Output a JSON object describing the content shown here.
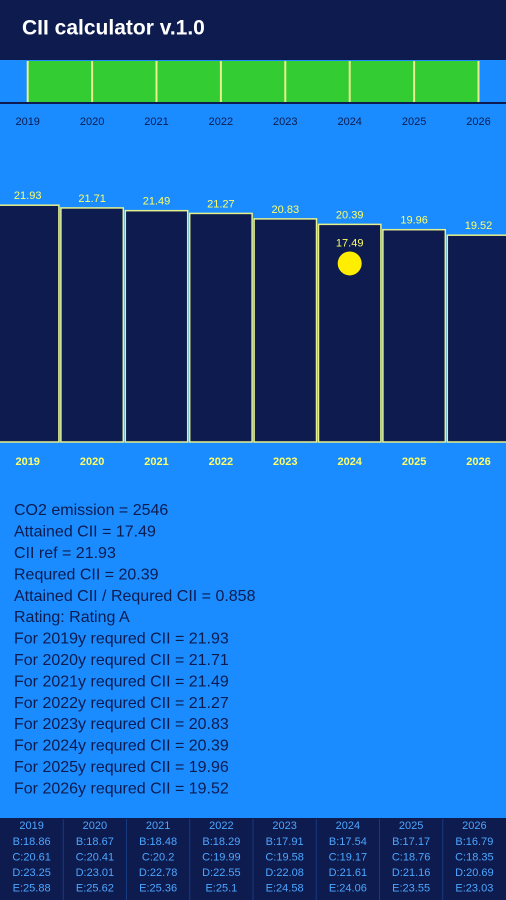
{
  "header": {
    "title": "CII calculator v.1.0"
  },
  "timeline": {
    "years": [
      "2019",
      "2020",
      "2021",
      "2022",
      "2023",
      "2024",
      "2025",
      "2026"
    ]
  },
  "chart_data": {
    "type": "bar",
    "categories": [
      "2019",
      "2020",
      "2021",
      "2022",
      "2023",
      "2024",
      "2025",
      "2026"
    ],
    "values": [
      21.93,
      21.71,
      21.49,
      21.27,
      20.83,
      20.39,
      19.96,
      19.52
    ],
    "color": "#0d1b4f",
    "ylim": [
      2.9,
      25
    ],
    "marker": {
      "category": 5,
      "value": 17.49,
      "color": "#ffee00"
    }
  },
  "info": {
    "lines": [
      "CO2 emission = 2546",
      "Attained CII = 17.49",
      "CII ref = 21.93",
      "Requred CII = 20.39",
      "Attained CII / Requred CII = 0.858",
      "Rating: Rating A",
      "For 2019y requred CII = 21.93",
      "For 2020y requred CII = 21.71",
      "For 2021y requred CII = 21.49",
      "For 2022y requred CII = 21.27",
      "For 2023y requred CII = 20.83",
      "For 2024y requred CII = 20.39",
      "For 2025y requred CII = 19.96",
      "For 2026y requred CII = 19.52"
    ]
  },
  "table": {
    "columns": [
      {
        "year": "2019",
        "rows": [
          "B:18.86",
          "C:20.61",
          "D:23.25",
          "E:25.88"
        ]
      },
      {
        "year": "2020",
        "rows": [
          "B:18.67",
          "C:20.41",
          "D:23.01",
          "E:25.62"
        ]
      },
      {
        "year": "2021",
        "rows": [
          "B:18.48",
          "C:20.2",
          "D:22.78",
          "E:25.36"
        ]
      },
      {
        "year": "2022",
        "rows": [
          "B:18.29",
          "C:19.99",
          "D:22.55",
          "E:25.1"
        ]
      },
      {
        "year": "2023",
        "rows": [
          "B:17.91",
          "C:19.58",
          "D:22.08",
          "E:24.58"
        ]
      },
      {
        "year": "2024",
        "rows": [
          "B:17.54",
          "C:19.17",
          "D:21.61",
          "E:24.06"
        ]
      },
      {
        "year": "2025",
        "rows": [
          "B:17.17",
          "C:18.76",
          "D:21.16",
          "E:23.55"
        ]
      },
      {
        "year": "2026",
        "rows": [
          "B:16.79",
          "C:18.35",
          "D:20.69",
          "E:23.03"
        ]
      }
    ]
  }
}
